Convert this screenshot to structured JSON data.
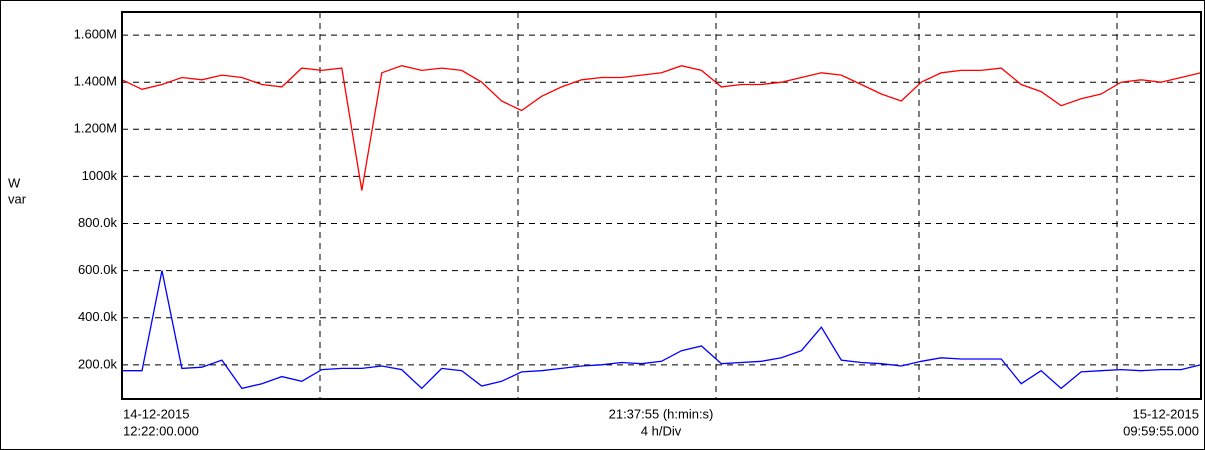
{
  "chart_data": {
    "type": "line",
    "y_label_lines": [
      "W",
      "var"
    ],
    "x_start_date": "14-12-2015",
    "x_start_time": "12:22:00.000",
    "x_mid_time": "21:37:55 (h:min:s)",
    "x_division": "4 h/Div",
    "x_end_date": "15-12-2015",
    "x_end_time": "09:59:55.000",
    "ylim": [
      55000,
      1698000
    ],
    "yticks": [
      {
        "value": 200000,
        "label": "200.0k"
      },
      {
        "value": 400000,
        "label": "400.0k"
      },
      {
        "value": 600000,
        "label": "600.0k"
      },
      {
        "value": 800000,
        "label": "800.0k"
      },
      {
        "value": 1000000,
        "label": "1000k"
      },
      {
        "value": 1200000,
        "label": "1.200M"
      },
      {
        "value": 1400000,
        "label": "1.400M"
      },
      {
        "value": 1600000,
        "label": "1.600M"
      }
    ],
    "grid": true,
    "series": [
      {
        "color": "#ff0000",
        "values": [
          1410000,
          1370000,
          1390000,
          1420000,
          1410000,
          1430000,
          1420000,
          1390000,
          1380000,
          1460000,
          1450000,
          1460000,
          940000,
          1440000,
          1470000,
          1450000,
          1460000,
          1450000,
          1400000,
          1320000,
          1280000,
          1340000,
          1380000,
          1410000,
          1420000,
          1420000,
          1430000,
          1440000,
          1470000,
          1450000,
          1380000,
          1390000,
          1390000,
          1400000,
          1420000,
          1440000,
          1430000,
          1390000,
          1350000,
          1320000,
          1400000,
          1440000,
          1450000,
          1450000,
          1460000,
          1390000,
          1360000,
          1300000,
          1330000,
          1350000,
          1400000,
          1410000,
          1400000,
          1420000,
          1440000
        ]
      },
      {
        "color": "#0000ff",
        "values": [
          175000,
          175000,
          600000,
          185000,
          190000,
          220000,
          100000,
          120000,
          150000,
          130000,
          180000,
          185000,
          185000,
          195000,
          180000,
          100000,
          185000,
          175000,
          110000,
          130000,
          170000,
          175000,
          185000,
          195000,
          200000,
          210000,
          205000,
          215000,
          260000,
          280000,
          205000,
          210000,
          215000,
          230000,
          260000,
          360000,
          220000,
          210000,
          205000,
          195000,
          215000,
          230000,
          225000,
          225000,
          225000,
          120000,
          175000,
          100000,
          170000,
          175000,
          180000,
          175000,
          180000,
          180000,
          200000
        ]
      }
    ]
  }
}
